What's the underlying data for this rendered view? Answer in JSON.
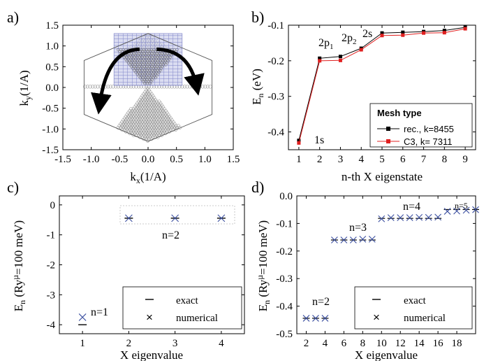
{
  "colors": {
    "blue": "#3b4fa0",
    "red": "#e02020",
    "black": "#000000",
    "mesh": "#7f84c8",
    "meshfill": "#c7cbe9",
    "circle": "#777777"
  },
  "panels": [
    {
      "label": "a)"
    },
    {
      "label": "b)"
    },
    {
      "label": "c)"
    },
    {
      "label": "d)"
    }
  ],
  "chart_data": [
    {
      "id": "a",
      "type": "diagram",
      "xlabel_main": "k",
      "xlabel_sub": "x",
      "xlabel_unit": "(1/A)",
      "ylabel_main": "k",
      "ylabel_sub": "y",
      "ylabel_unit": "(1/A)",
      "xlim": [
        -1.5,
        1.5
      ],
      "ylim": [
        -1.5,
        1.5
      ],
      "xticks": [
        "-1.5",
        "-1.0",
        "-0.5",
        "0.0",
        "0.5",
        "1.0",
        "1.5"
      ],
      "yticks": [
        "1.5",
        "1.0",
        "0.5",
        "0.0",
        "-0.5",
        "-1.0",
        "-1.5"
      ],
      "hexagon_circumradius": 1.3,
      "grid_region": {
        "x": [
          -0.6,
          0.6
        ],
        "y": [
          0.05,
          1.3
        ]
      }
    },
    {
      "id": "b",
      "type": "line",
      "xlabel": "n-th X eigenstate",
      "ylabel_main": "E",
      "ylabel_sub": "n",
      "ylabel_unit": " (eV)",
      "xlim": [
        0.5,
        9.5
      ],
      "ylim": [
        -0.45,
        -0.1
      ],
      "xticks": [
        "1",
        "2",
        "3",
        "4",
        "5",
        "6",
        "7",
        "8",
        "9"
      ],
      "yticks": [
        "-0.1",
        "-0.2",
        "-0.3",
        "-0.4"
      ],
      "x": [
        1,
        2,
        3,
        4,
        5,
        6,
        7,
        8,
        9
      ],
      "series": [
        {
          "name": "rec., k=8455",
          "color": "black",
          "values": [
            -0.424,
            -0.193,
            -0.188,
            -0.165,
            -0.122,
            -0.12,
            -0.118,
            -0.115,
            -0.106
          ]
        },
        {
          "name": "C3,  k= 7311",
          "color": "red",
          "values": [
            -0.431,
            -0.2,
            -0.199,
            -0.169,
            -0.129,
            -0.128,
            -0.122,
            -0.121,
            -0.11
          ]
        }
      ],
      "legend_title": "Mesh type",
      "annotations": [
        {
          "main": "1s",
          "sub": "",
          "tail": ""
        },
        {
          "main": "2p",
          "sub": "1",
          "tail": ""
        },
        {
          "main": "2p",
          "sub": "2",
          "tail": ""
        },
        {
          "main": "2s",
          "sub": "",
          "tail": ""
        }
      ]
    },
    {
      "id": "c",
      "type": "scatter",
      "xlabel": "X eigenvalue",
      "ylabel_main": "E",
      "ylabel_sub": "n",
      "ylabel_mid": " (Ry",
      "ylabel_sup": "µ",
      "ylabel_tail": "=100 meV)",
      "xlim": [
        0.5,
        4.5
      ],
      "ylim": [
        -4.3,
        0.3
      ],
      "xticks": [
        "1",
        "2",
        "3",
        "4"
      ],
      "yticks": [
        "0",
        "-1",
        "-2",
        "-3",
        "-4"
      ],
      "series": [
        {
          "name": "exact",
          "x": [
            1,
            2,
            3,
            4
          ],
          "y": [
            -4.0,
            -0.444,
            -0.444,
            -0.444
          ]
        },
        {
          "name": "numerical",
          "x": [
            1,
            2,
            3,
            4
          ],
          "y": [
            -3.75,
            -0.444,
            -0.444,
            -0.444
          ]
        }
      ],
      "annotations": [
        "n=1",
        "n=2"
      ]
    },
    {
      "id": "d",
      "type": "scatter",
      "xlabel": "X eigenvalue",
      "ylabel_main": "E",
      "ylabel_sub": "n",
      "ylabel_mid": " (Ry",
      "ylabel_sup": "µ",
      "ylabel_tail": "=100 meV)",
      "xlim": [
        1,
        20
      ],
      "ylim": [
        -0.5,
        0.0
      ],
      "xticks": [
        "2",
        "4",
        "6",
        "8",
        "10",
        "12",
        "14",
        "16",
        "18"
      ],
      "yticks": [
        "0.0",
        "-0.1",
        "-0.2",
        "-0.3",
        "-0.4",
        "-0.5"
      ],
      "series": [
        {
          "name": "exact",
          "x": [
            2,
            3,
            4,
            5,
            6,
            7,
            8,
            9,
            10,
            11,
            12,
            13,
            14,
            15,
            16,
            17,
            18,
            19,
            20
          ],
          "y": [
            -0.444,
            -0.444,
            -0.444,
            -0.16,
            -0.16,
            -0.16,
            -0.16,
            -0.16,
            -0.0816,
            -0.0816,
            -0.0816,
            -0.0816,
            -0.0816,
            -0.0816,
            -0.0816,
            -0.0494,
            -0.0494,
            -0.0494,
            -0.0494
          ]
        },
        {
          "name": "numerical",
          "x": [
            2,
            3,
            4,
            5,
            6,
            7,
            8,
            9,
            10,
            11,
            12,
            13,
            14,
            15,
            16,
            17,
            18,
            19,
            20
          ],
          "y": [
            -0.444,
            -0.444,
            -0.444,
            -0.16,
            -0.16,
            -0.16,
            -0.157,
            -0.157,
            -0.083,
            -0.079,
            -0.079,
            -0.079,
            -0.078,
            -0.078,
            -0.077,
            -0.056,
            -0.055,
            -0.052,
            -0.05
          ]
        }
      ],
      "annotations": [
        "n=2",
        "n=3",
        "n=4",
        "n=5"
      ]
    }
  ]
}
